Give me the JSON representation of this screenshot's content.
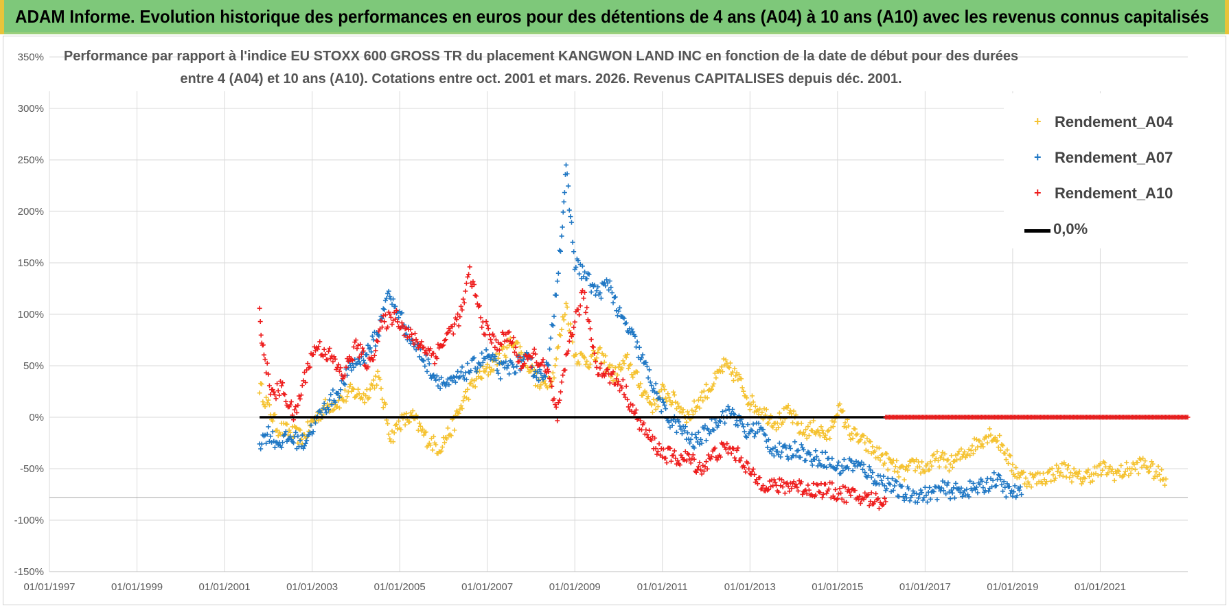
{
  "banner": {
    "title": "ADAM Informe. Evolution historique des performances en euros pour des détentions de 4 ans (A04) à 10 ans (A10) avec les revenus connus capitalisés"
  },
  "chart_data": {
    "type": "scatter",
    "title_line1": "Performance par rapport à l'indice EU STOXX 600 GROSS TR  du placement KANGWON LAND INC en fonction de la date de début pour des durées",
    "title_line2": "entre 4 (A04) et 10 ans (A10). Cotations entre oct. 2001 et mars. 2026. Revenus CAPITALISES depuis déc. 2001.",
    "xlabel": "",
    "ylabel": "",
    "x_range": [
      1997.0,
      2023.0
    ],
    "ylim": [
      -150,
      350
    ],
    "y_ticks": [
      -150,
      -100,
      -50,
      0,
      50,
      100,
      150,
      200,
      250,
      300,
      350
    ],
    "y_tick_labels": [
      "-150%",
      "-100%",
      "-50%",
      "0%",
      "50%",
      "100%",
      "150%",
      "200%",
      "250%",
      "300%",
      "350%"
    ],
    "x_ticks": [
      1997.0,
      1999.0,
      2001.0,
      2003.0,
      2005.0,
      2007.0,
      2009.0,
      2011.0,
      2013.0,
      2015.0,
      2017.0,
      2019.0,
      2021.0
    ],
    "x_tick_labels": [
      "01/01/1997",
      "01/01/1999",
      "01/01/2001",
      "01/01/2003",
      "01/01/2005",
      "01/01/2007",
      "01/01/2009",
      "01/01/2011",
      "01/01/2013",
      "01/01/2015",
      "01/01/2017",
      "01/01/2019",
      "01/01/2021"
    ],
    "grid": true,
    "legend_position": "top-right",
    "series": [
      {
        "name": "Rendement_A04",
        "color": "#f5c230",
        "marker": "plus",
        "x": [
          2001.8,
          2002.0,
          2002.2,
          2002.5,
          2002.8,
          2003.0,
          2003.3,
          2003.6,
          2003.9,
          2004.2,
          2004.5,
          2004.8,
          2005.0,
          2005.3,
          2005.6,
          2005.9,
          2006.2,
          2006.5,
          2006.8,
          2007.0,
          2007.3,
          2007.6,
          2007.9,
          2008.2,
          2008.5,
          2008.8,
          2009.0,
          2009.3,
          2009.6,
          2009.9,
          2010.2,
          2010.5,
          2010.8,
          2011.0,
          2011.3,
          2011.6,
          2011.9,
          2012.2,
          2012.4,
          2012.7,
          2013.0,
          2013.3,
          2013.6,
          2013.9,
          2014.2,
          2014.5,
          2014.8,
          2015.0,
          2015.3,
          2015.6,
          2015.9,
          2016.2,
          2016.5,
          2016.8,
          2017.0,
          2017.3,
          2017.6,
          2017.9,
          2018.2,
          2018.5,
          2018.8,
          2019.0,
          2019.3,
          2019.6,
          2019.9,
          2020.2,
          2020.5,
          2020.8,
          2021.1,
          2021.4,
          2021.7,
          2022.0,
          2022.3,
          2022.5
        ],
        "y": [
          30,
          10,
          -10,
          -15,
          -20,
          -5,
          10,
          15,
          25,
          20,
          40,
          -20,
          -5,
          0,
          -20,
          -30,
          -10,
          20,
          40,
          45,
          60,
          75,
          55,
          30,
          40,
          110,
          60,
          55,
          60,
          40,
          55,
          30,
          10,
          25,
          15,
          0,
          20,
          35,
          50,
          40,
          15,
          5,
          -5,
          5,
          -15,
          -10,
          -20,
          10,
          -15,
          -25,
          -35,
          -45,
          -55,
          -45,
          -50,
          -40,
          -45,
          -35,
          -25,
          -15,
          -30,
          -50,
          -60,
          -60,
          -55,
          -50,
          -60,
          -55,
          -50,
          -55,
          -50,
          -45,
          -55,
          -60
        ]
      },
      {
        "name": "Rendement_A07",
        "color": "#1f77c4",
        "marker": "plus",
        "x": [
          2001.8,
          2002.0,
          2002.2,
          2002.5,
          2002.8,
          2003.0,
          2003.3,
          2003.6,
          2003.9,
          2004.2,
          2004.5,
          2004.7,
          2005.0,
          2005.2,
          2005.5,
          2005.8,
          2006.1,
          2006.4,
          2006.7,
          2007.0,
          2007.3,
          2007.6,
          2007.9,
          2008.2,
          2008.4,
          2008.7,
          2008.8,
          2009.0,
          2009.2,
          2009.5,
          2009.8,
          2010.0,
          2010.3,
          2010.6,
          2010.9,
          2011.1,
          2011.4,
          2011.7,
          2012.0,
          2012.3,
          2012.6,
          2012.9,
          2013.2,
          2013.5,
          2013.8,
          2014.1,
          2014.4,
          2014.7,
          2015.0,
          2015.3,
          2015.6,
          2015.9,
          2016.2,
          2016.5,
          2016.8,
          2017.1,
          2017.4,
          2017.7,
          2018.0,
          2018.3,
          2018.6,
          2018.9,
          2019.2
        ],
        "y": [
          -25,
          -15,
          -25,
          -20,
          -25,
          -10,
          10,
          25,
          50,
          60,
          80,
          120,
          100,
          80,
          60,
          40,
          30,
          40,
          50,
          60,
          45,
          50,
          55,
          40,
          50,
          180,
          240,
          150,
          140,
          120,
          130,
          100,
          80,
          50,
          20,
          0,
          -10,
          -25,
          -15,
          0,
          5,
          -15,
          -10,
          -30,
          -35,
          -30,
          -40,
          -40,
          -50,
          -45,
          -50,
          -60,
          -65,
          -75,
          -75,
          -75,
          -70,
          -72,
          -70,
          -68,
          -60,
          -72,
          -75
        ]
      },
      {
        "name": "Rendement_A10",
        "color": "#ee1c1c",
        "marker": "plus",
        "x": [
          2001.8,
          2001.9,
          2002.1,
          2002.3,
          2002.6,
          2002.9,
          2003.1,
          2003.4,
          2003.7,
          2004.0,
          2004.3,
          2004.6,
          2004.9,
          2005.2,
          2005.5,
          2005.8,
          2006.1,
          2006.4,
          2006.6,
          2006.9,
          2007.2,
          2007.5,
          2007.8,
          2008.1,
          2008.4,
          2008.6,
          2008.9,
          2009.2,
          2009.5,
          2009.8,
          2010.1,
          2010.4,
          2010.7,
          2011.0,
          2011.3,
          2011.6,
          2011.9,
          2012.2,
          2012.5,
          2012.8,
          2013.1,
          2013.4,
          2013.7,
          2014.0,
          2014.3,
          2014.6,
          2014.9,
          2015.2,
          2015.5,
          2015.8,
          2016.1
        ],
        "y": [
          100,
          60,
          20,
          30,
          0,
          50,
          70,
          60,
          40,
          70,
          50,
          90,
          100,
          80,
          70,
          60,
          80,
          100,
          140,
          90,
          70,
          80,
          50,
          60,
          40,
          0,
          80,
          120,
          50,
          40,
          30,
          0,
          -20,
          -35,
          -40,
          -40,
          -50,
          -35,
          -30,
          -40,
          -60,
          -65,
          -68,
          -65,
          -70,
          -70,
          -72,
          -75,
          -78,
          -80,
          -82
        ]
      },
      {
        "name": "0,0%",
        "color": "#000000",
        "marker": "line",
        "x": [
          2001.8,
          2023.0
        ],
        "y": [
          0,
          0
        ]
      }
    ],
    "a10_zero_marker_range": [
      2016.1,
      2023.0
    ]
  }
}
